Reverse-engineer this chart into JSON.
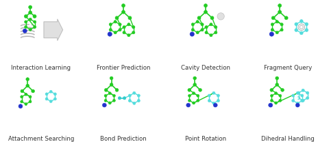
{
  "labels_row1": [
    "Interaction Learning",
    "Frontier Prediction",
    "Cavity Detection",
    "Fragment Query"
  ],
  "labels_row2": [
    "Attachment Searching",
    "Bond Prediction",
    "Point Rotation",
    "Dihedral Handling"
  ],
  "bg_color": "#ffffff",
  "label_fontsize": 6.2,
  "label_color": "#333333",
  "green": "#22cc22",
  "green_dark": "#119911",
  "blue": "#2233cc",
  "cyan": "#33cccc",
  "cyan2": "#55dddd",
  "gray1": "#bbbbbb",
  "gray2": "#dddddd",
  "white": "#ffffff"
}
